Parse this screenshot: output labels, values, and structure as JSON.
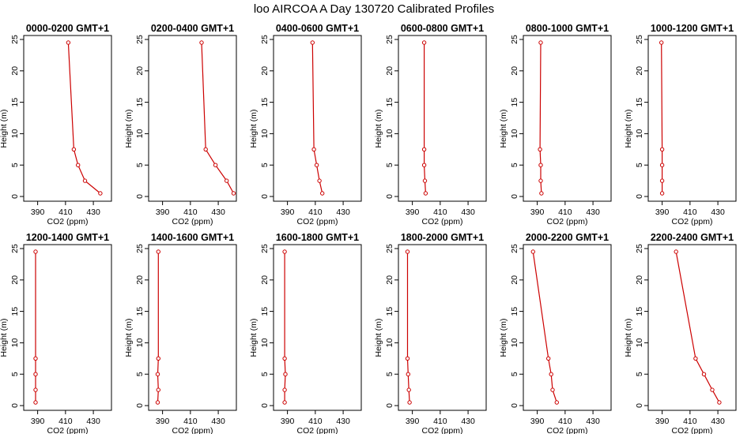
{
  "figure": {
    "title": "loo AIRCOA A  Day 130720  Calibrated Profiles"
  },
  "chart_data": [
    {
      "type": "line",
      "title": "0000-0200 GMT+1",
      "xlabel": "CO2 (ppm)",
      "ylabel": "Height (m)",
      "xlim": [
        380,
        443
      ],
      "ylim": [
        0,
        25
      ],
      "xticks": [
        390,
        410,
        430
      ],
      "yticks": [
        0,
        5,
        10,
        15,
        20,
        25
      ],
      "grid": false,
      "series": [
        {
          "x": [
            435,
            424,
            419,
            416,
            412
          ],
          "y": [
            0.5,
            2.5,
            5,
            7.5,
            24.5
          ]
        }
      ]
    },
    {
      "type": "line",
      "title": "0200-0400 GMT+1",
      "xlabel": "CO2 (ppm)",
      "ylabel": "Height (m)",
      "xlim": [
        380,
        443
      ],
      "ylim": [
        0,
        25
      ],
      "xticks": [
        390,
        410,
        430
      ],
      "yticks": [
        0,
        5,
        10,
        15,
        20,
        25
      ],
      "grid": false,
      "series": [
        {
          "x": [
            441,
            436,
            428,
            421,
            418
          ],
          "y": [
            0.5,
            2.5,
            5,
            7.5,
            24.5
          ]
        }
      ]
    },
    {
      "type": "line",
      "title": "0400-0600 GMT+1",
      "xlabel": "CO2 (ppm)",
      "ylabel": "Height (m)",
      "xlim": [
        380,
        443
      ],
      "ylim": [
        0,
        25
      ],
      "xticks": [
        390,
        410,
        430
      ],
      "yticks": [
        0,
        5,
        10,
        15,
        20,
        25
      ],
      "grid": false,
      "series": [
        {
          "x": [
            415,
            413,
            411,
            409,
            408
          ],
          "y": [
            0.5,
            2.5,
            5,
            7.5,
            24.5
          ]
        }
      ]
    },
    {
      "type": "line",
      "title": "0600-0800 GMT+1",
      "xlabel": "CO2 (ppm)",
      "ylabel": "Height (m)",
      "xlim": [
        380,
        443
      ],
      "ylim": [
        0,
        25
      ],
      "xticks": [
        390,
        410,
        430
      ],
      "yticks": [
        0,
        5,
        10,
        15,
        20,
        25
      ],
      "grid": false,
      "series": [
        {
          "x": [
            399.5,
            399,
            398.5,
            398.5,
            398.5
          ],
          "y": [
            0.5,
            2.5,
            5,
            7.5,
            24.5
          ]
        }
      ]
    },
    {
      "type": "line",
      "title": "0800-1000 GMT+1",
      "xlabel": "CO2 (ppm)",
      "ylabel": "Height (m)",
      "xlim": [
        380,
        443
      ],
      "ylim": [
        0,
        25
      ],
      "xticks": [
        390,
        410,
        430
      ],
      "yticks": [
        0,
        5,
        10,
        15,
        20,
        25
      ],
      "grid": false,
      "series": [
        {
          "x": [
            393,
            392.5,
            392.5,
            392,
            392.5
          ],
          "y": [
            0.5,
            2.5,
            5,
            7.5,
            24.5
          ]
        }
      ]
    },
    {
      "type": "line",
      "title": "1000-1200 GMT+1",
      "xlabel": "CO2 (ppm)",
      "ylabel": "Height (m)",
      "xlim": [
        380,
        443
      ],
      "ylim": [
        0,
        25
      ],
      "xticks": [
        390,
        410,
        430
      ],
      "yticks": [
        0,
        5,
        10,
        15,
        20,
        25
      ],
      "grid": false,
      "series": [
        {
          "x": [
            390,
            390,
            390,
            390,
            389.5
          ],
          "y": [
            0.5,
            2.5,
            5,
            7.5,
            24.5
          ]
        }
      ]
    },
    {
      "type": "line",
      "title": "1200-1400 GMT+1",
      "xlabel": "CO2 (ppm)",
      "ylabel": "Height (m)",
      "xlim": [
        380,
        443
      ],
      "ylim": [
        0,
        25
      ],
      "xticks": [
        390,
        410,
        430
      ],
      "yticks": [
        0,
        5,
        10,
        15,
        20,
        25
      ],
      "grid": false,
      "series": [
        {
          "x": [
            388.5,
            388.5,
            388.5,
            388.5,
            388.5
          ],
          "y": [
            0.5,
            2.5,
            5,
            7.5,
            24.5
          ]
        }
      ]
    },
    {
      "type": "line",
      "title": "1400-1600 GMT+1",
      "xlabel": "CO2 (ppm)",
      "ylabel": "Height (m)",
      "xlim": [
        380,
        443
      ],
      "ylim": [
        0,
        25
      ],
      "xticks": [
        390,
        410,
        430
      ],
      "yticks": [
        0,
        5,
        10,
        15,
        20,
        25
      ],
      "grid": false,
      "series": [
        {
          "x": [
            386.5,
            387,
            386.5,
            387,
            387
          ],
          "y": [
            0.5,
            2.5,
            5,
            7.5,
            24.5
          ]
        }
      ]
    },
    {
      "type": "line",
      "title": "1600-1800 GMT+1",
      "xlabel": "CO2 (ppm)",
      "ylabel": "Height (m)",
      "xlim": [
        380,
        443
      ],
      "ylim": [
        0,
        25
      ],
      "xticks": [
        390,
        410,
        430
      ],
      "yticks": [
        0,
        5,
        10,
        15,
        20,
        25
      ],
      "grid": false,
      "series": [
        {
          "x": [
            388,
            388,
            388.5,
            388,
            388
          ],
          "y": [
            0.5,
            2.5,
            5,
            7.5,
            24.5
          ]
        }
      ]
    },
    {
      "type": "line",
      "title": "1800-2000 GMT+1",
      "xlabel": "CO2 (ppm)",
      "ylabel": "Height (m)",
      "xlim": [
        380,
        443
      ],
      "ylim": [
        0,
        25
      ],
      "xticks": [
        390,
        410,
        430
      ],
      "yticks": [
        0,
        5,
        10,
        15,
        20,
        25
      ],
      "grid": false,
      "series": [
        {
          "x": [
            388,
            387.5,
            387,
            386.5,
            386.5
          ],
          "y": [
            0.5,
            2.5,
            5,
            7.5,
            24.5
          ]
        }
      ]
    },
    {
      "type": "line",
      "title": "2000-2200 GMT+1",
      "xlabel": "CO2 (ppm)",
      "ylabel": "Height (m)",
      "xlim": [
        380,
        443
      ],
      "ylim": [
        0,
        25
      ],
      "xticks": [
        390,
        410,
        430
      ],
      "yticks": [
        0,
        5,
        10,
        15,
        20,
        25
      ],
      "grid": false,
      "series": [
        {
          "x": [
            404,
            401,
            400,
            398,
            387
          ],
          "y": [
            0.5,
            2.5,
            5,
            7.5,
            24.5
          ]
        }
      ]
    },
    {
      "type": "line",
      "title": "2200-2400 GMT+1",
      "xlabel": "CO2 (ppm)",
      "ylabel": "Height (m)",
      "xlim": [
        380,
        443
      ],
      "ylim": [
        0,
        25
      ],
      "xticks": [
        390,
        410,
        430
      ],
      "yticks": [
        0,
        5,
        10,
        15,
        20,
        25
      ],
      "grid": false,
      "series": [
        {
          "x": [
            431,
            426,
            420,
            414,
            400
          ],
          "y": [
            0.5,
            2.5,
            5,
            7.5,
            24.5
          ]
        }
      ]
    }
  ],
  "style": {
    "line_color": "#cc0000",
    "axis_color": "#000000"
  }
}
